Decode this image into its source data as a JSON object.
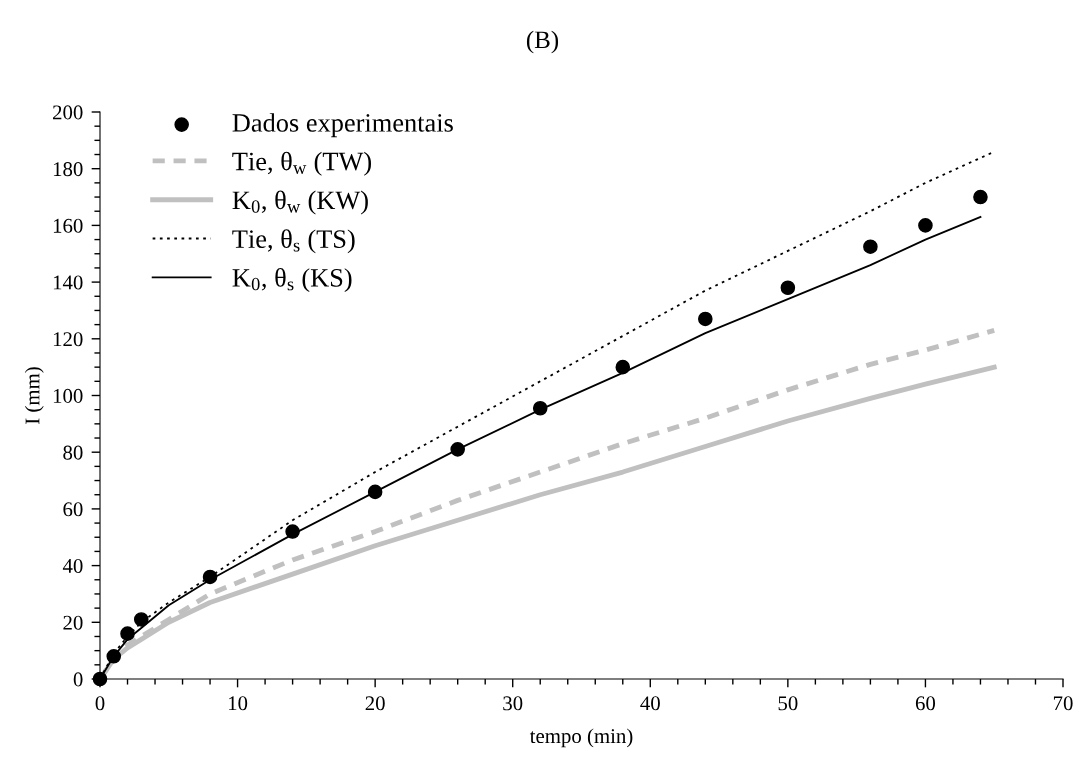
{
  "chart_data": {
    "type": "line",
    "title": "(B)",
    "xlabel": "tempo (min)",
    "ylabel": "I (mm)",
    "xlim": [
      0,
      70
    ],
    "xticks": [
      0,
      10,
      20,
      30,
      40,
      50,
      60,
      70
    ],
    "ylim": [
      0,
      200
    ],
    "yticks": [
      0,
      20,
      40,
      60,
      80,
      100,
      120,
      140,
      160,
      180,
      200
    ],
    "grid": false,
    "legend": "top left",
    "series": [
      {
        "name": "Dados experimentais",
        "type": "scatter",
        "marker": "circle",
        "color": "#000000",
        "x": [
          0,
          1,
          2,
          3,
          8,
          14,
          20,
          26,
          32,
          38,
          44,
          50,
          56,
          60,
          64
        ],
        "values": [
          0,
          8,
          16,
          21,
          36,
          52,
          66,
          81,
          95.5,
          110,
          127,
          138,
          152.5,
          160,
          170
        ]
      },
      {
        "name": "Tie, θ$_{w}$ (TW)",
        "line_style": "dashed",
        "color": "#c0c0c0",
        "x": [
          0,
          1,
          2,
          3,
          5,
          8,
          14,
          20,
          26,
          32,
          38,
          44,
          50,
          56,
          60,
          65
        ],
        "values": [
          0,
          7,
          12,
          15,
          21,
          30,
          42,
          52,
          63,
          73,
          83,
          92,
          102,
          111,
          116,
          123
        ]
      },
      {
        "name": "K$_{0}$, θ$_{w}$ (KW)",
        "line_style": "solid",
        "color": "#c0c0c0",
        "x": [
          0,
          1,
          2,
          3,
          5,
          8,
          14,
          20,
          26,
          32,
          38,
          44,
          50,
          56,
          60,
          65
        ],
        "values": [
          0,
          7,
          11,
          14,
          20,
          27,
          37,
          47,
          56,
          65,
          73,
          82,
          91,
          99,
          104,
          110
        ]
      },
      {
        "name": "Tie, θ$_{s}$ (TS)",
        "line_style": "dotted",
        "color": "#000000",
        "x": [
          0,
          1,
          2,
          3,
          5,
          8,
          14,
          20,
          26,
          32,
          38,
          44,
          50,
          56,
          60,
          65
        ],
        "values": [
          0,
          9,
          15,
          20,
          27,
          36,
          56,
          73,
          89,
          105,
          121,
          137,
          151,
          165,
          175,
          186
        ]
      },
      {
        "name": "K$_{0}$, θ$_{s}$ (KS)",
        "line_style": "solid",
        "color": "#000000",
        "x": [
          0,
          1,
          2,
          3,
          5,
          8,
          14,
          20,
          26,
          32,
          38,
          44,
          50,
          56,
          60,
          64
        ],
        "values": [
          0,
          8,
          14,
          18,
          26,
          35,
          51,
          66,
          81,
          95,
          108,
          122,
          134,
          146,
          155,
          163
        ]
      }
    ]
  }
}
